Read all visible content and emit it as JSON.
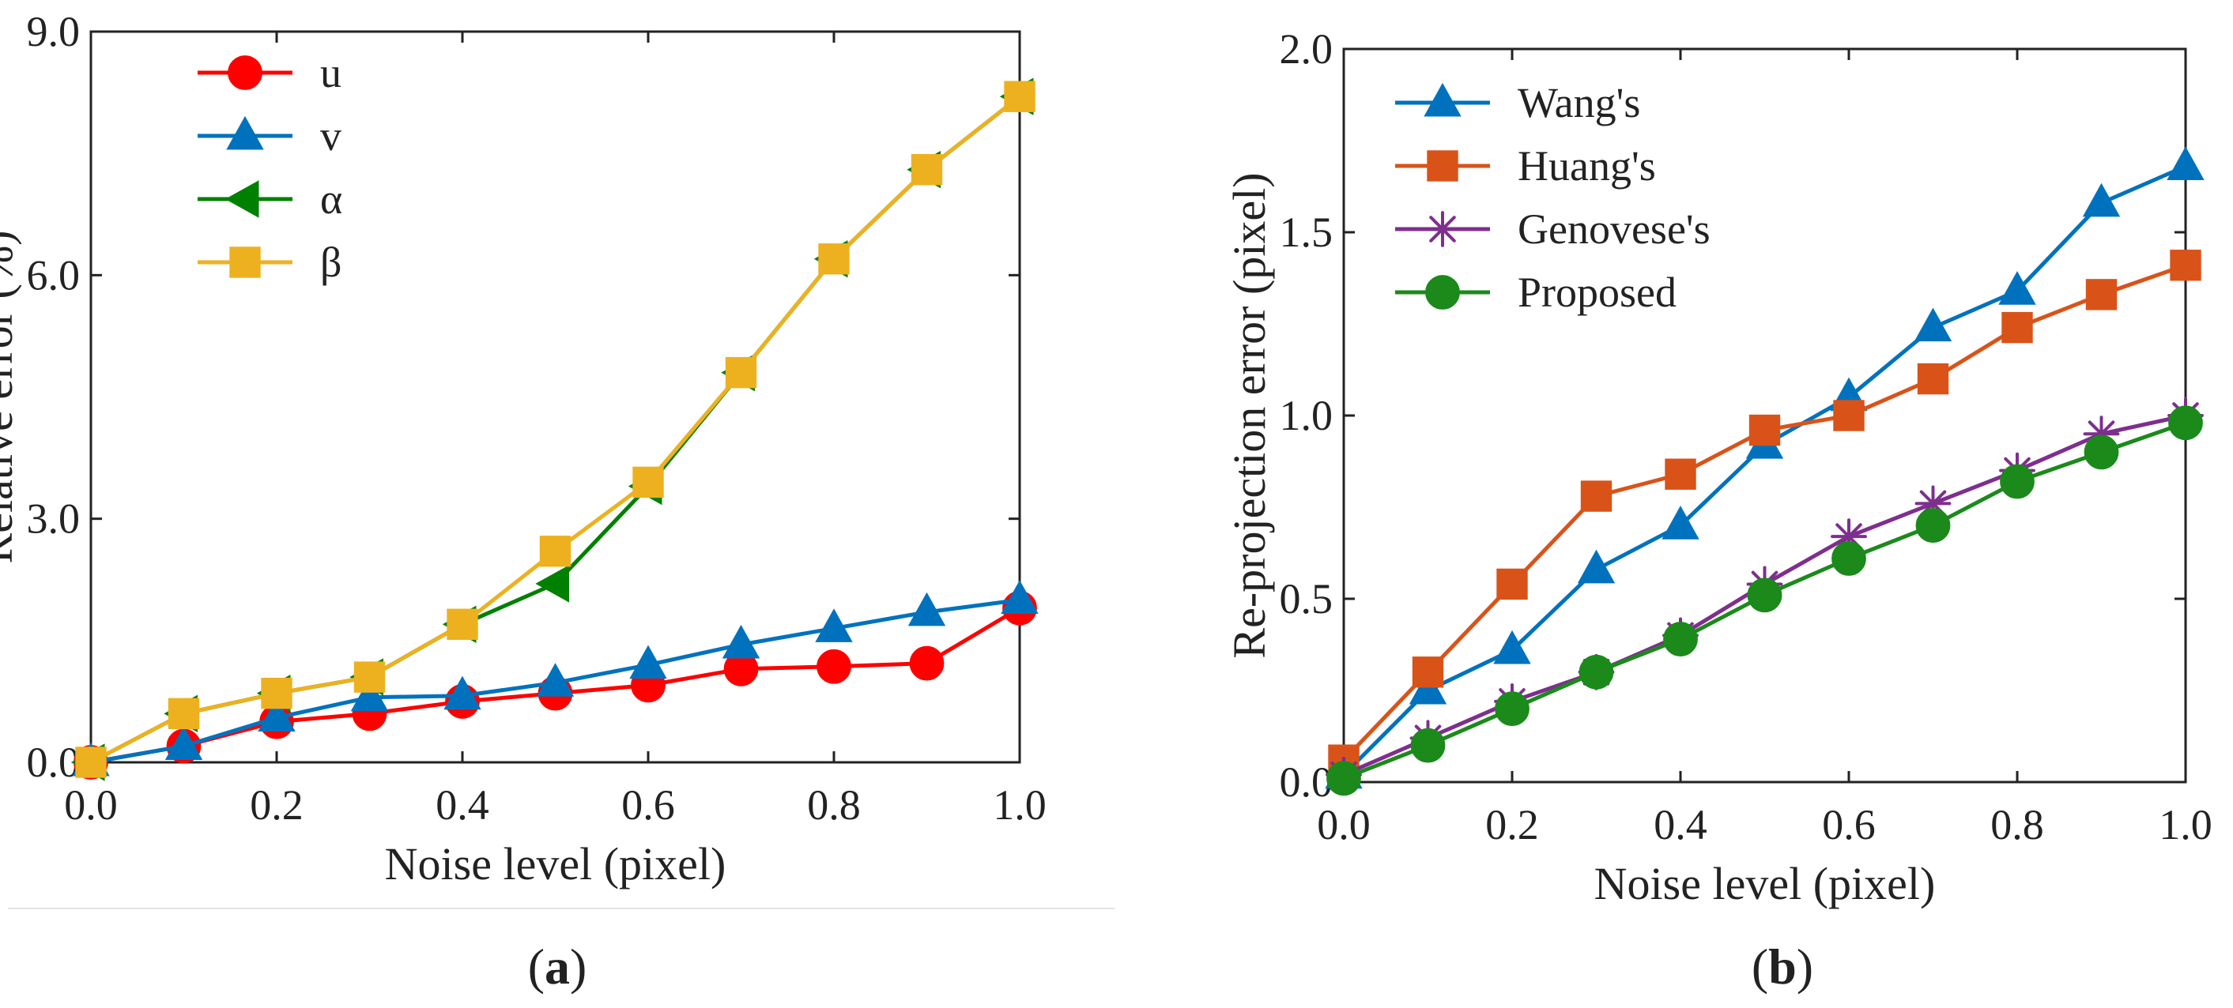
{
  "chart_data": [
    {
      "id": "a",
      "type": "line",
      "panel_label": "a",
      "xlabel": "Noise level (pixel)",
      "ylabel": "Relative error (%)",
      "xlim": [
        0,
        1
      ],
      "ylim": [
        0,
        9
      ],
      "xticks": [
        0,
        0.2,
        0.4,
        0.6,
        0.8,
        1.0
      ],
      "xtick_labels": [
        "0.0",
        "0.2",
        "0.4",
        "0.6",
        "0.8",
        "1.0"
      ],
      "yticks": [
        0,
        3,
        6,
        9
      ],
      "ytick_labels": [
        "0.0",
        "3.0",
        "6.0",
        "9.0"
      ],
      "grid": false,
      "legend_position": "top-left",
      "x": [
        0,
        0.1,
        0.2,
        0.3,
        0.4,
        0.5,
        0.6,
        0.7,
        0.8,
        0.9,
        1.0
      ],
      "series": [
        {
          "name": "u",
          "color": "#ff0000",
          "marker": "circle",
          "values": [
            0,
            0.2,
            0.5,
            0.6,
            0.75,
            0.85,
            0.95,
            1.15,
            1.18,
            1.22,
            1.9
          ]
        },
        {
          "name": "v",
          "color": "#0072bd",
          "marker": "triangle-up",
          "values": [
            0,
            0.2,
            0.55,
            0.8,
            0.82,
            0.98,
            1.2,
            1.45,
            1.65,
            1.85,
            2.0
          ]
        },
        {
          "name": "α",
          "color": "#008000",
          "marker": "triangle-left",
          "values": [
            0,
            0.6,
            0.85,
            1.05,
            1.7,
            2.2,
            3.4,
            4.8,
            6.2,
            7.3,
            8.2
          ]
        },
        {
          "name": "β",
          "color": "#edb120",
          "marker": "square",
          "values": [
            0,
            0.6,
            0.85,
            1.05,
            1.7,
            2.6,
            3.45,
            4.8,
            6.2,
            7.3,
            8.2
          ]
        }
      ]
    },
    {
      "id": "b",
      "type": "line",
      "panel_label": "b",
      "xlabel": "Noise level (pixel)",
      "ylabel": "Re-projection error (pixel)",
      "xlim": [
        0,
        1
      ],
      "ylim": [
        0,
        2
      ],
      "xticks": [
        0,
        0.2,
        0.4,
        0.6,
        0.8,
        1.0
      ],
      "xtick_labels": [
        "0.0",
        "0.2",
        "0.4",
        "0.6",
        "0.8",
        "1.0"
      ],
      "yticks": [
        0,
        0.5,
        1.0,
        1.5,
        2.0
      ],
      "ytick_labels": [
        "0.0",
        "0.5",
        "1.0",
        "1.5",
        "2.0"
      ],
      "grid": false,
      "legend_position": "top-left",
      "x": [
        0,
        0.1,
        0.2,
        0.3,
        0.4,
        0.5,
        0.6,
        0.7,
        0.8,
        0.9,
        1.0
      ],
      "series": [
        {
          "name": "Wang's",
          "color": "#0072bd",
          "marker": "triangle-up",
          "values": [
            0.02,
            0.25,
            0.36,
            0.58,
            0.7,
            0.92,
            1.05,
            1.24,
            1.34,
            1.58,
            1.68
          ]
        },
        {
          "name": "Huang's",
          "color": "#d95319",
          "marker": "square",
          "values": [
            0.06,
            0.3,
            0.54,
            0.78,
            0.84,
            0.96,
            1.0,
            1.1,
            1.24,
            1.33,
            1.41
          ]
        },
        {
          "name": "Genovese's",
          "color": "#7e2f8e",
          "marker": "asterisk",
          "values": [
            0.02,
            0.12,
            0.22,
            0.3,
            0.4,
            0.54,
            0.67,
            0.76,
            0.85,
            0.95,
            1.0
          ]
        },
        {
          "name": "Proposed",
          "color": "#1b8a1b",
          "marker": "circle",
          "values": [
            0.01,
            0.1,
            0.2,
            0.3,
            0.39,
            0.51,
            0.61,
            0.7,
            0.82,
            0.9,
            0.98
          ]
        }
      ]
    }
  ]
}
